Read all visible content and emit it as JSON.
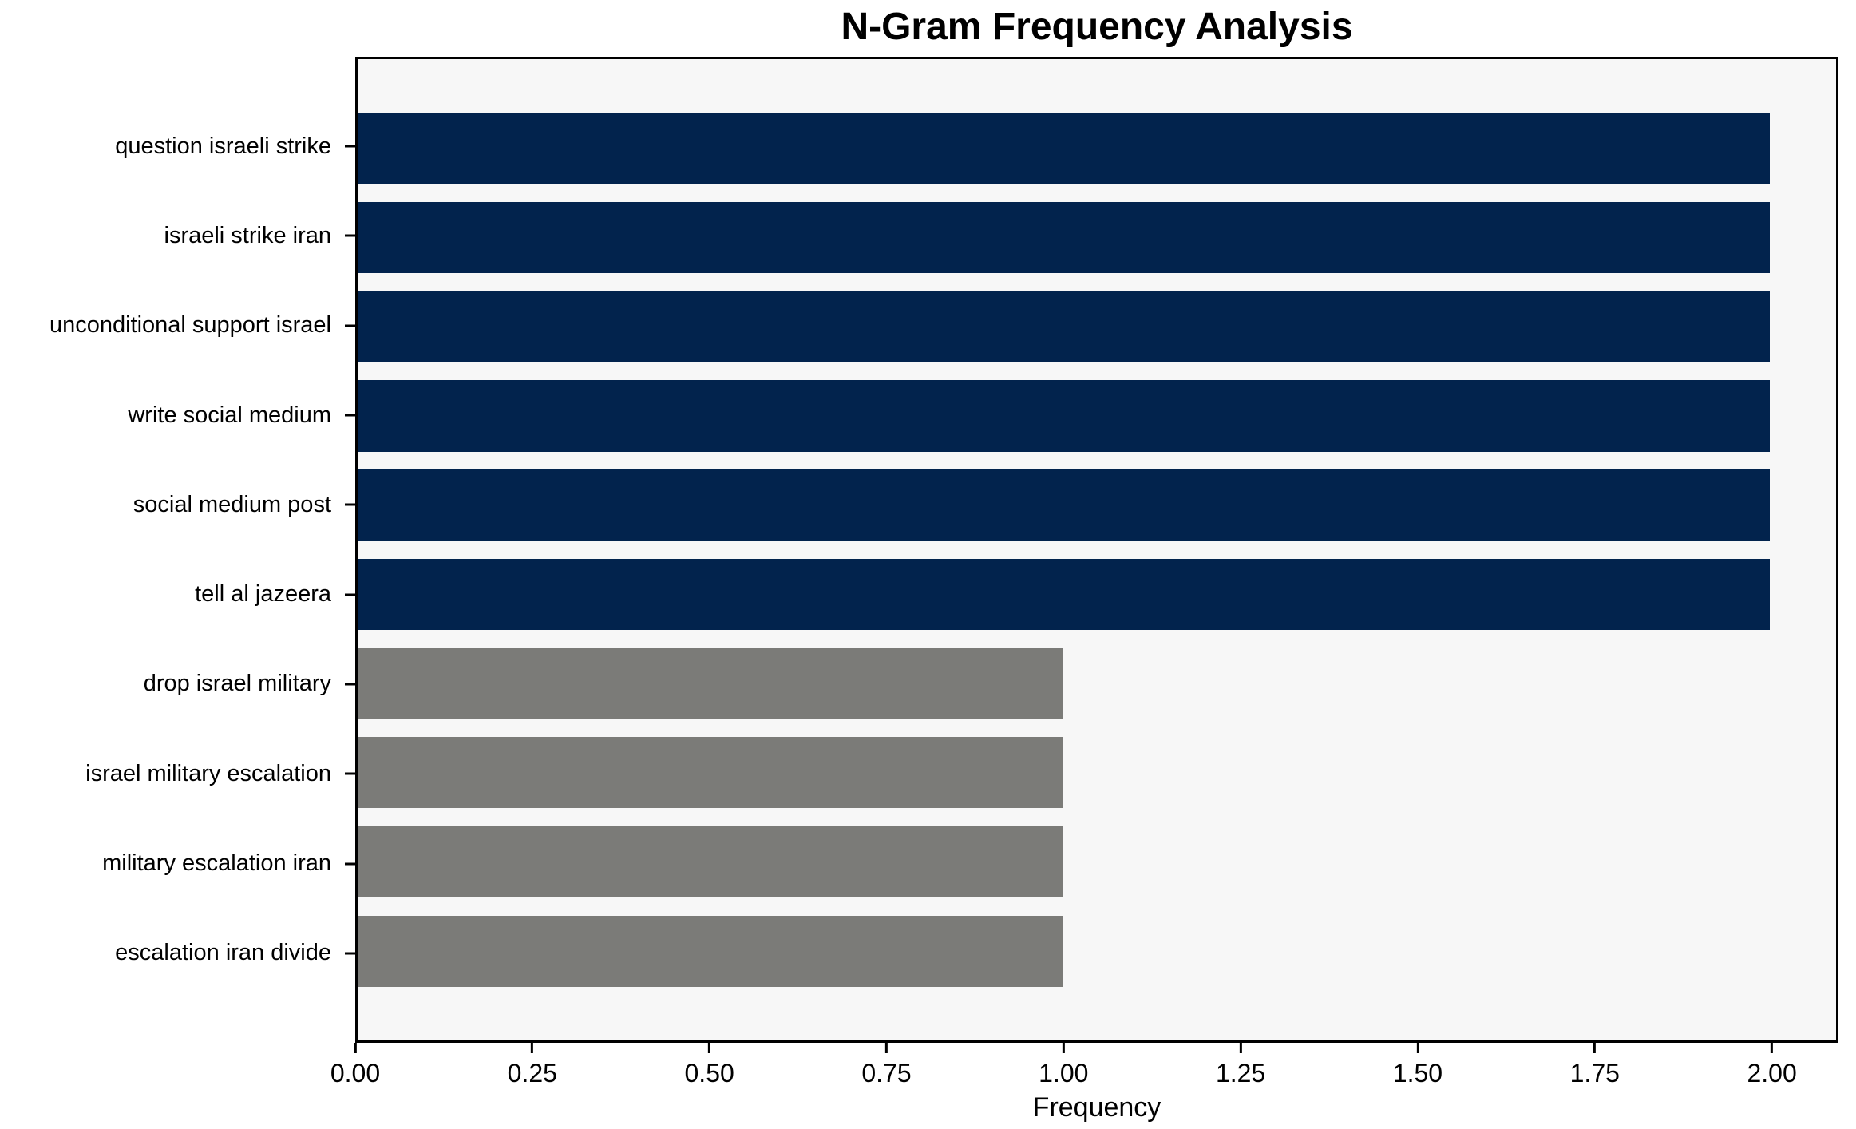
{
  "chart_data": {
    "type": "bar",
    "orientation": "horizontal",
    "title": "N-Gram Frequency Analysis",
    "xlabel": "Frequency",
    "ylabel": "",
    "categories": [
      "question israeli strike",
      "israeli strike iran",
      "unconditional support israel",
      "write social medium",
      "social medium post",
      "tell al jazeera",
      "drop israel military",
      "israel military escalation",
      "military escalation iran",
      "escalation iran divide"
    ],
    "values": [
      2,
      2,
      2,
      2,
      2,
      2,
      1,
      1,
      1,
      1
    ],
    "bar_colors": [
      "#02234d",
      "#02234d",
      "#02234d",
      "#02234d",
      "#02234d",
      "#02234d",
      "#7b7b78",
      "#7b7b78",
      "#7b7b78",
      "#7b7b78"
    ],
    "xlim": [
      0,
      2.094
    ],
    "xtick_values": [
      0,
      0.25,
      0.5,
      0.75,
      1.0,
      1.25,
      1.5,
      1.75,
      2.0
    ],
    "xtick_labels": [
      "0.00",
      "0.25",
      "0.50",
      "0.75",
      "1.00",
      "1.25",
      "1.50",
      "1.75",
      "2.00"
    ],
    "grid": false,
    "legend": null,
    "plot_background": "#f7f7f7",
    "figure_background": "#ffffff",
    "axis_color": "#000000",
    "bar_height_fraction": 0.8
  }
}
